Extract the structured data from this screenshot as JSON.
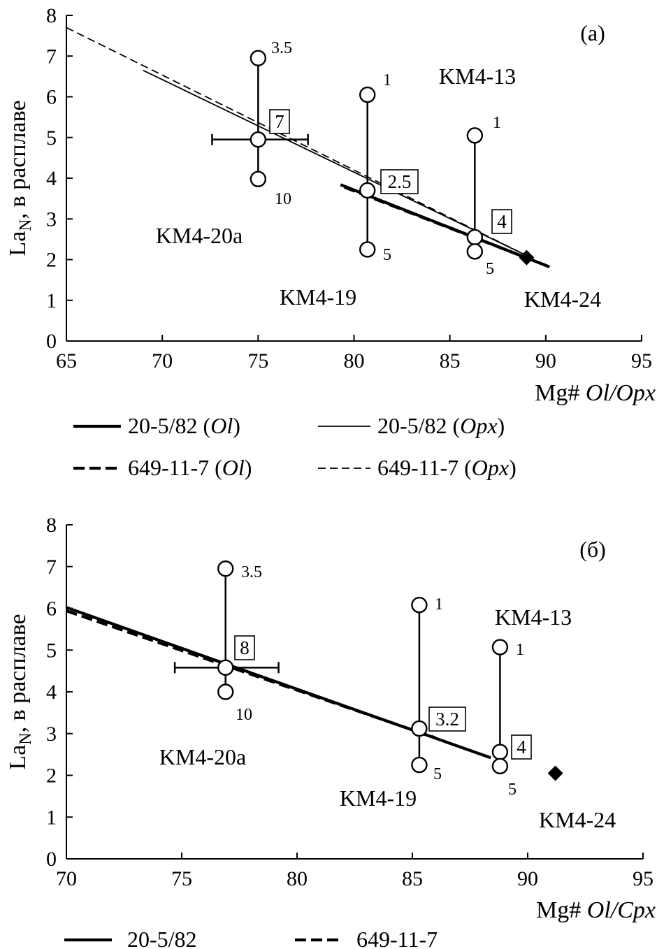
{
  "chart_data": [
    {
      "type": "scatter",
      "panel_label": "(a)",
      "xlabel": {
        "main": "Mg# ",
        "italic": "Ol/Opx"
      },
      "ylabel": {
        "main": "La",
        "sub": "N",
        "rest": ", в расплаве"
      },
      "xlim": [
        65,
        95
      ],
      "ylim": [
        0,
        8
      ],
      "xticks": [
        "65",
        "70",
        "75",
        "80",
        "85",
        "90",
        "95"
      ],
      "yticks": [
        "0",
        "1",
        "2",
        "3",
        "4",
        "5",
        "6",
        "7",
        "8"
      ],
      "lines": [
        {
          "name": "20-5/82 (Ol)",
          "style": "thick-solid",
          "x": [
            79.3,
            90.2
          ],
          "y": [
            3.84,
            1.82
          ]
        },
        {
          "name": "649-11-7 (Ol)",
          "style": "thick-dashed",
          "x": [
            79.5,
            90.0
          ],
          "y": [
            3.78,
            1.86
          ]
        },
        {
          "name": "20-5/82 (Opx)",
          "style": "thin-solid",
          "x": [
            69.0,
            89.0
          ],
          "y": [
            6.65,
            2.1
          ]
        },
        {
          "name": "649-11-7 (Opx)",
          "style": "thin-dashed",
          "x": [
            65.0,
            89.0
          ],
          "y": [
            7.7,
            2.1
          ]
        }
      ],
      "samples": [
        {
          "name": "KM4-20a",
          "x": 75.0,
          "points": [
            {
              "y": 6.95,
              "label": "3.5"
            },
            {
              "y": 4.95,
              "label": "7",
              "boxed": true
            },
            {
              "y": 3.98,
              "label": "10"
            }
          ],
          "xerr": [
            72.6,
            77.6
          ]
        },
        {
          "name": "KM4-19",
          "x": 80.7,
          "points": [
            {
              "y": 6.05,
              "label": "1"
            },
            {
              "y": 3.7,
              "label": "2.5",
              "boxed": true
            },
            {
              "y": 2.25,
              "label": "5"
            }
          ]
        },
        {
          "name": "KM4-13",
          "x": 86.3,
          "points": [
            {
              "y": 5.05,
              "label": "1"
            },
            {
              "y": 2.55,
              "label": "4",
              "boxed": true
            },
            {
              "y": 2.2,
              "label": "5"
            }
          ]
        }
      ],
      "reference_point": {
        "name": "KM4-24",
        "x": 89.0,
        "y": 2.05
      },
      "legend": [
        {
          "label": "20-5/82 (",
          "italic": "Ol",
          "close": ")",
          "style": "thick-solid"
        },
        {
          "label": "20-5/82 (",
          "italic": "Opx",
          "close": ")",
          "style": "thin-solid"
        },
        {
          "label": "649-11-7 (",
          "italic": "Ol",
          "close": ")",
          "style": "thick-dashed"
        },
        {
          "label": "649-11-7 (",
          "italic": "Opx",
          "close": ")",
          "style": "thin-dashed"
        }
      ]
    },
    {
      "type": "scatter",
      "panel_label": "(б)",
      "xlabel": {
        "main": "Mg# ",
        "italic": "Ol/Cpx"
      },
      "ylabel": {
        "main": "La",
        "sub": "N",
        "rest": ", в расплаве"
      },
      "xlim": [
        70,
        95
      ],
      "ylim": [
        0,
        8
      ],
      "xticks": [
        "70",
        "75",
        "80",
        "85",
        "90",
        "95"
      ],
      "yticks": [
        "0",
        "1",
        "2",
        "3",
        "4",
        "5",
        "6",
        "7",
        "8"
      ],
      "lines": [
        {
          "name": "20-5/82",
          "style": "thick-solid",
          "x": [
            70.0,
            88.4
          ],
          "y": [
            6.02,
            2.42
          ]
        },
        {
          "name": "649-11-7",
          "style": "thick-dashed",
          "x": [
            70.0,
            86.0
          ],
          "y": [
            5.94,
            2.9
          ]
        }
      ],
      "samples": [
        {
          "name": "KM4-20a",
          "x": 76.9,
          "points": [
            {
              "y": 6.95,
              "label": "3.5"
            },
            {
              "y": 4.58,
              "label": "8",
              "boxed": true
            },
            {
              "y": 4.0,
              "label": "10"
            }
          ],
          "xerr": [
            74.7,
            79.2
          ]
        },
        {
          "name": "KM4-19",
          "x": 85.3,
          "points": [
            {
              "y": 6.08,
              "label": "1"
            },
            {
              "y": 3.12,
              "label": "3.2",
              "boxed": true
            },
            {
              "y": 2.25,
              "label": "5"
            }
          ]
        },
        {
          "name": "KM4-13",
          "x": 88.8,
          "points": [
            {
              "y": 5.07,
              "label": "1"
            },
            {
              "y": 2.56,
              "label": "4",
              "boxed": true
            },
            {
              "y": 2.22,
              "label": "5"
            }
          ]
        }
      ],
      "reference_point": {
        "name": "KM4-24",
        "x": 91.2,
        "y": 2.05
      },
      "legend": [
        {
          "label": "20-5/82",
          "style": "thick-solid"
        },
        {
          "label": "649-11-7",
          "style": "thick-dashed"
        }
      ]
    }
  ]
}
